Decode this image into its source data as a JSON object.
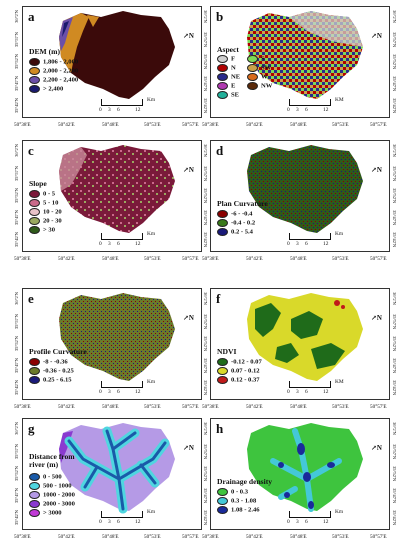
{
  "coords": {
    "x_ticks": [
      "50°38'E",
      "50°42'E",
      "50°48'E",
      "50°53'E",
      "50°57'E"
    ],
    "y_ticks": [
      "36°2'N",
      "35°57'N",
      "35°52'N",
      "35°47'N",
      "35°42'N"
    ]
  },
  "scale_bar": {
    "ticks": [
      "0",
      "3",
      "6",
      "12"
    ]
  },
  "north_label": "N",
  "panels": [
    {
      "id": "a",
      "label": "a",
      "title": "DEM (m)",
      "unit": "Km",
      "classes": [
        {
          "label": "1,806 - 2,000",
          "color": "#3b0a0a"
        },
        {
          "label": "2,000 - 2,200",
          "color": "#d08a22"
        },
        {
          "label": "2,200 - 2,400",
          "color": "#6b4fa8"
        },
        {
          "label": "> 2,400",
          "color": "#1a1a6e"
        }
      ]
    },
    {
      "id": "b",
      "label": "b",
      "title": "Aspect",
      "unit": "KM",
      "classes": [
        {
          "label": "F",
          "color": "#cfcfcf"
        },
        {
          "label": "S",
          "color": "#7ed957"
        },
        {
          "label": "N",
          "color": "#b00000"
        },
        {
          "label": "SW",
          "color": "#c9a24a"
        },
        {
          "label": "NE",
          "color": "#2a2a8c"
        },
        {
          "label": "W",
          "color": "#d86b1c"
        },
        {
          "label": "E",
          "color": "#b03ab0"
        },
        {
          "label": "NW",
          "color": "#5a2a0a"
        },
        {
          "label": "SE",
          "color": "#22b09a"
        }
      ]
    },
    {
      "id": "c",
      "label": "c",
      "title": "Slope",
      "unit": "Km",
      "classes": [
        {
          "label": "0 - 5",
          "color": "#7a1a3a"
        },
        {
          "label": "5 - 10",
          "color": "#c96a8a"
        },
        {
          "label": "10 - 20",
          "color": "#e8c2c8"
        },
        {
          "label": "20 - 30",
          "color": "#9aa860"
        },
        {
          "label": "> 30",
          "color": "#2f5a1a"
        }
      ]
    },
    {
      "id": "d",
      "label": "d",
      "title": "Plan Curvature",
      "unit": "Km",
      "classes": [
        {
          "label": "-6 - -0.4",
          "color": "#8b0000"
        },
        {
          "label": "-0.4 - 0.2",
          "color": "#3a7a1a"
        },
        {
          "label": "0.2 - 5.4",
          "color": "#1a1a7a"
        }
      ]
    },
    {
      "id": "e",
      "label": "e",
      "title": "Profile Curvature",
      "unit": "Km",
      "classes": [
        {
          "label": "-8 - -0.36",
          "color": "#8b0000"
        },
        {
          "label": "-0.36 - 0.25",
          "color": "#6b7a2a"
        },
        {
          "label": "0.25 - 6.15",
          "color": "#1a1a7a"
        }
      ]
    },
    {
      "id": "f",
      "label": "f",
      "title": "NDVI",
      "unit": "KM",
      "classes": [
        {
          "label": "-0.12 - 0.07",
          "color": "#1f6b1a"
        },
        {
          "label": "0.07 - 0.12",
          "color": "#d9d92a"
        },
        {
          "label": "0.12 - 0.37",
          "color": "#c01a1a"
        }
      ]
    },
    {
      "id": "g",
      "label": "g",
      "title": "Distance from river (m)",
      "unit": "Km",
      "classes": [
        {
          "label": "0 - 500",
          "color": "#1a5aa8"
        },
        {
          "label": "500 - 1000",
          "color": "#4fd6e0"
        },
        {
          "label": "1000 - 2000",
          "color": "#b59ae6"
        },
        {
          "label": "2000 - 3000",
          "color": "#8a3ad0"
        },
        {
          "label": "> 3000",
          "color": "#c03ad6"
        }
      ]
    },
    {
      "id": "h",
      "label": "h",
      "title": "Drainage density",
      "unit": "Km",
      "classes": [
        {
          "label": "0 - 0.3",
          "color": "#3ec43e"
        },
        {
          "label": "0.3 - 1.08",
          "color": "#44c8d8"
        },
        {
          "label": "1.08 - 2.46",
          "color": "#1a2a9a"
        }
      ]
    }
  ]
}
